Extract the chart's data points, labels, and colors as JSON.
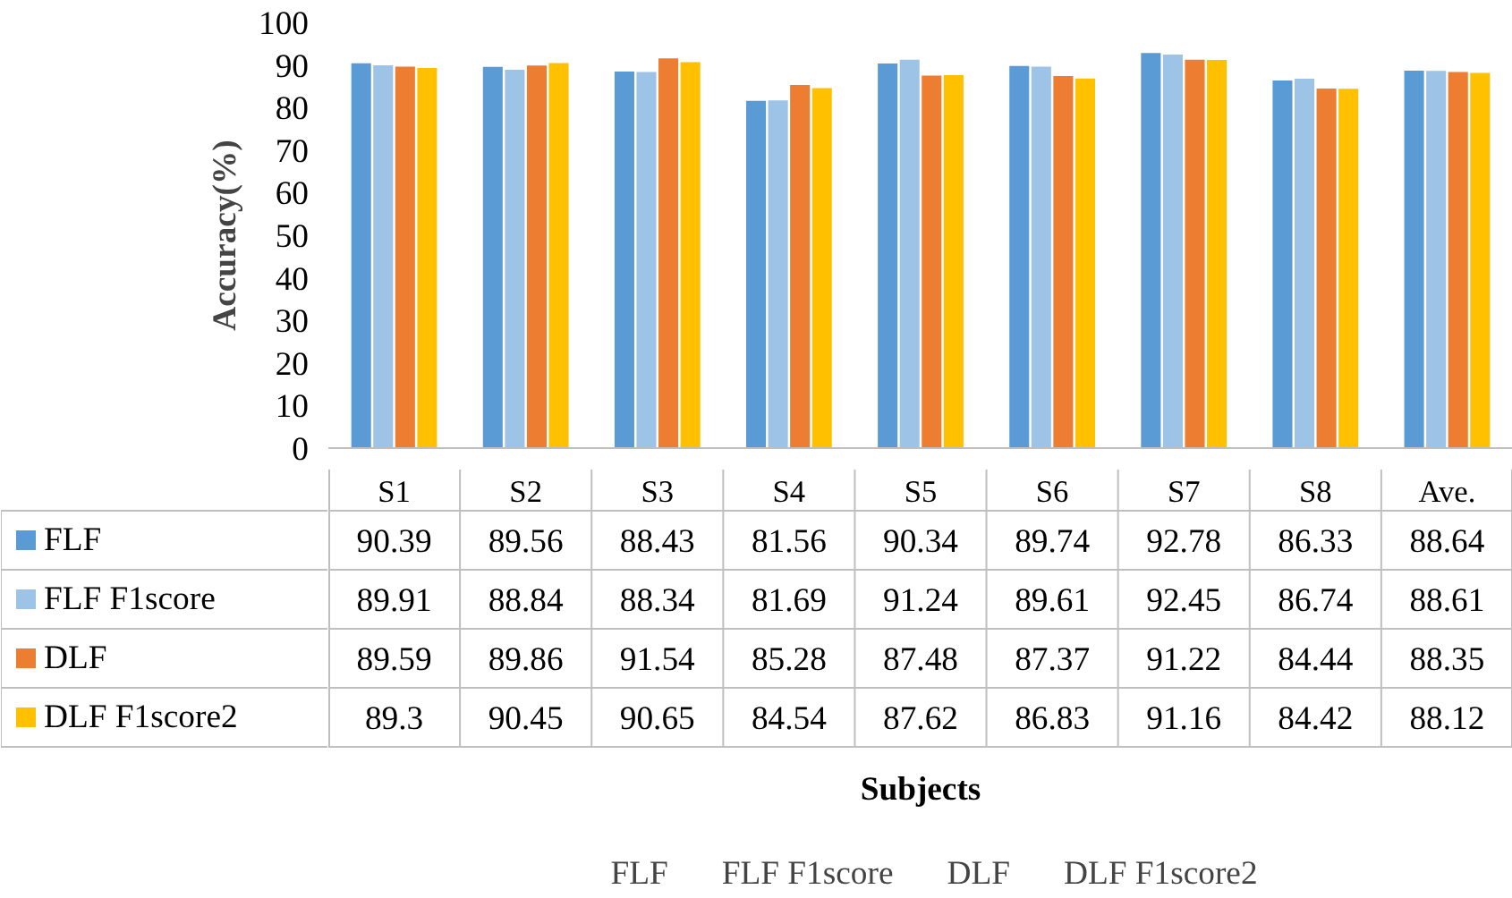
{
  "chart_data": {
    "type": "bar",
    "annotations": [
      "Subjects"
    ],
    "ylabel": "Accuracy(%)",
    "categories": [
      "S1",
      "S2",
      "S3",
      "S4",
      "S5",
      "S6",
      "S7",
      "S8",
      "Ave."
    ],
    "series": [
      {
        "name": "FLF",
        "color": "#5b9bd5",
        "values": [
          90.39,
          89.56,
          88.43,
          81.56,
          90.34,
          89.74,
          92.78,
          86.33,
          88.64
        ]
      },
      {
        "name": "FLF F1score",
        "color": "#9dc3e6",
        "values": [
          89.91,
          88.84,
          88.34,
          81.69,
          91.24,
          89.61,
          92.45,
          86.74,
          88.61
        ]
      },
      {
        "name": "DLF",
        "color": "#ed7d31",
        "values": [
          89.59,
          89.86,
          91.54,
          85.28,
          87.48,
          87.37,
          91.22,
          84.44,
          88.35
        ]
      },
      {
        "name": "DLF F1score2",
        "color": "#ffc000",
        "values": [
          89.3,
          90.45,
          90.65,
          84.54,
          87.62,
          86.83,
          91.16,
          84.42,
          88.12
        ]
      }
    ],
    "ylim": [
      0,
      100
    ],
    "yticks": [
      0,
      10,
      20,
      30,
      40,
      50,
      60,
      70,
      80,
      90,
      100
    ],
    "grid": false,
    "legend": "bottom",
    "data_labels": true
  }
}
